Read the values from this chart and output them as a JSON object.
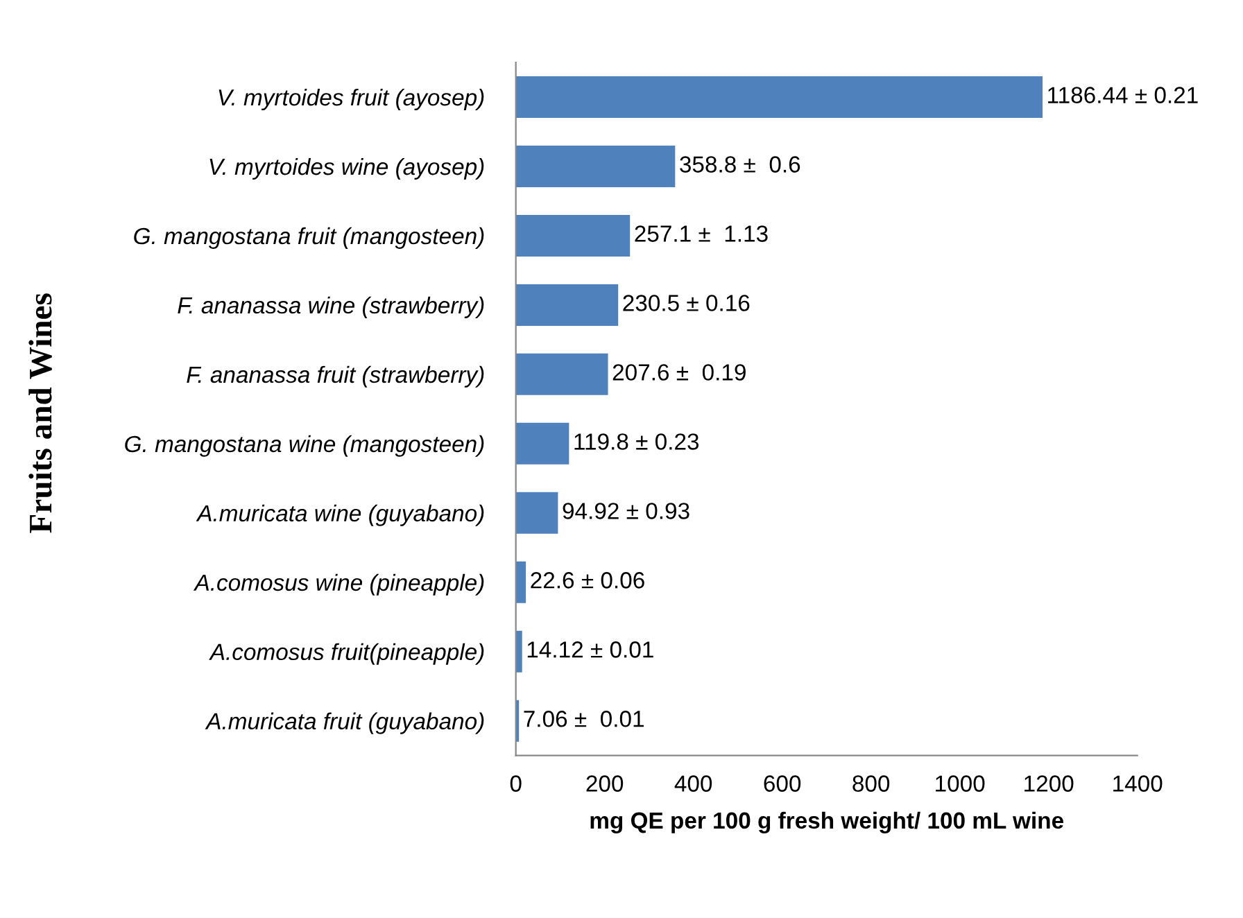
{
  "chart_data": {
    "type": "bar",
    "orientation": "horizontal",
    "ylabel": "Fruits and Wines",
    "xlabel": "mg QE per 100 g fresh weight/ 100 mL wine",
    "categories": [
      "V. myrtoides fruit (ayosep)",
      "V. myrtoides wine (ayosep)",
      "G. mangostana fruit (mangosteen)",
      "F. ananassa wine (strawberry)",
      "F. ananassa fruit (strawberry)",
      "G. mangostana wine (mangosteen)",
      "A.muricata wine (guyabano)",
      "A.comosus wine (pineapple)",
      "A.comosus fruit(pineapple)",
      "A.muricata fruit (guyabano)"
    ],
    "values": [
      1186.44,
      358.8,
      257.1,
      230.5,
      207.6,
      119.8,
      94.92,
      22.6,
      14.12,
      7.06
    ],
    "value_labels": [
      "1186.44 ± 0.21",
      "358.8 ±  0.6",
      "257.1 ±  1.13",
      "230.5 ± 0.16",
      "207.6 ±  0.19",
      "119.8 ± 0.23",
      "94.92 ± 0.93",
      "22.6 ± 0.06",
      "14.12 ± 0.01",
      "7.06 ±  0.01"
    ],
    "color": "#4f81bd",
    "xlim": [
      0,
      1400
    ],
    "xticks": [
      0,
      200,
      400,
      600,
      800,
      1000,
      1200,
      1400
    ],
    "grid": false
  }
}
